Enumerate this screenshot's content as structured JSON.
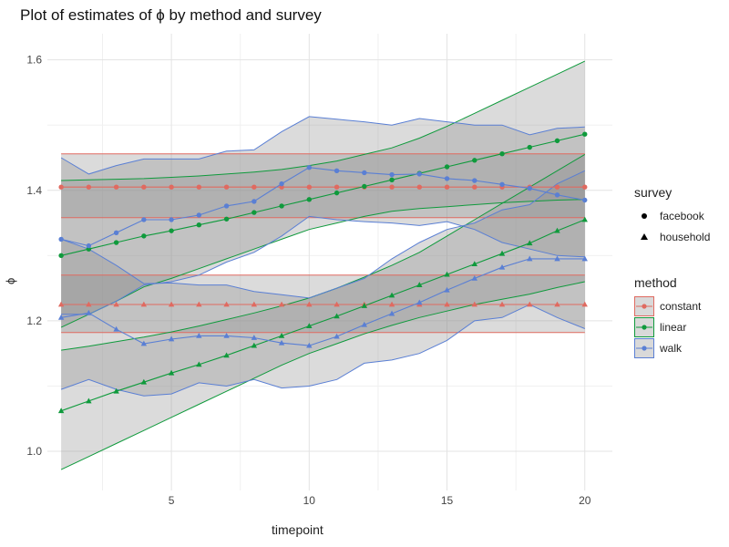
{
  "chart_data": {
    "type": "line",
    "title": "Plot of estimates of ϕ by method and survey",
    "xlabel": "timepoint",
    "ylabel": "ϕ",
    "xlim": [
      0.5,
      21
    ],
    "ylim": [
      0.94,
      1.64
    ],
    "xticks": [
      5,
      10,
      15,
      20
    ],
    "yticks": [
      1.0,
      1.2,
      1.4,
      1.6
    ],
    "x": [
      1,
      2,
      3,
      4,
      5,
      6,
      7,
      8,
      9,
      10,
      11,
      12,
      13,
      14,
      15,
      16,
      17,
      18,
      19,
      20
    ],
    "grid": true,
    "colors": {
      "constant": "#e06a60",
      "linear": "#0f9a3c",
      "walk": "#5a7fd4",
      "ribbon": "#8f8f8f"
    },
    "legend_survey": {
      "title": "survey",
      "items": [
        {
          "label": "facebook",
          "shape": "circle"
        },
        {
          "label": "household",
          "shape": "triangle"
        }
      ]
    },
    "legend_method": {
      "title": "method",
      "items": [
        {
          "label": "constant",
          "color": "#e06a60"
        },
        {
          "label": "linear",
          "color": "#0f9a3c"
        },
        {
          "label": "walk",
          "color": "#5a7fd4"
        }
      ]
    },
    "series": [
      {
        "method": "constant",
        "survey": "facebook",
        "shape": "circle",
        "values": [
          1.405,
          1.405,
          1.405,
          1.405,
          1.405,
          1.405,
          1.405,
          1.405,
          1.405,
          1.405,
          1.405,
          1.405,
          1.405,
          1.405,
          1.405,
          1.405,
          1.405,
          1.405,
          1.405,
          1.405
        ],
        "lower": [
          1.358,
          1.358,
          1.358,
          1.358,
          1.358,
          1.358,
          1.358,
          1.358,
          1.358,
          1.358,
          1.358,
          1.358,
          1.358,
          1.358,
          1.358,
          1.358,
          1.358,
          1.358,
          1.358,
          1.358
        ],
        "upper": [
          1.456,
          1.456,
          1.456,
          1.456,
          1.456,
          1.456,
          1.456,
          1.456,
          1.456,
          1.456,
          1.456,
          1.456,
          1.456,
          1.456,
          1.456,
          1.456,
          1.456,
          1.456,
          1.456,
          1.456
        ]
      },
      {
        "method": "constant",
        "survey": "household",
        "shape": "triangle",
        "values": [
          1.225,
          1.225,
          1.225,
          1.225,
          1.225,
          1.225,
          1.225,
          1.225,
          1.225,
          1.225,
          1.225,
          1.225,
          1.225,
          1.225,
          1.225,
          1.225,
          1.225,
          1.225,
          1.225,
          1.225
        ],
        "lower": [
          1.182,
          1.182,
          1.182,
          1.182,
          1.182,
          1.182,
          1.182,
          1.182,
          1.182,
          1.182,
          1.182,
          1.182,
          1.182,
          1.182,
          1.182,
          1.182,
          1.182,
          1.182,
          1.182,
          1.182
        ],
        "upper": [
          1.27,
          1.27,
          1.27,
          1.27,
          1.27,
          1.27,
          1.27,
          1.27,
          1.27,
          1.27,
          1.27,
          1.27,
          1.27,
          1.27,
          1.27,
          1.27,
          1.27,
          1.27,
          1.27,
          1.27
        ]
      },
      {
        "method": "linear",
        "survey": "facebook",
        "shape": "circle",
        "values": [
          1.3,
          1.31,
          1.32,
          1.33,
          1.338,
          1.347,
          1.356,
          1.366,
          1.376,
          1.386,
          1.396,
          1.406,
          1.416,
          1.426,
          1.436,
          1.446,
          1.456,
          1.466,
          1.476,
          1.486
        ],
        "lower": [
          1.19,
          1.21,
          1.23,
          1.252,
          1.265,
          1.28,
          1.295,
          1.31,
          1.325,
          1.34,
          1.35,
          1.36,
          1.368,
          1.372,
          1.375,
          1.378,
          1.381,
          1.383,
          1.385,
          1.386
        ],
        "upper": [
          1.415,
          1.416,
          1.417,
          1.418,
          1.42,
          1.422,
          1.425,
          1.428,
          1.432,
          1.438,
          1.445,
          1.455,
          1.465,
          1.48,
          1.498,
          1.518,
          1.538,
          1.558,
          1.578,
          1.598
        ]
      },
      {
        "method": "linear",
        "survey": "household",
        "shape": "triangle",
        "values": [
          1.062,
          1.077,
          1.092,
          1.106,
          1.12,
          1.133,
          1.147,
          1.162,
          1.177,
          1.192,
          1.207,
          1.223,
          1.239,
          1.255,
          1.271,
          1.287,
          1.303,
          1.319,
          1.338,
          1.355
        ],
        "lower": [
          0.972,
          0.992,
          1.012,
          1.032,
          1.052,
          1.072,
          1.092,
          1.112,
          1.132,
          1.15,
          1.165,
          1.18,
          1.193,
          1.205,
          1.215,
          1.225,
          1.233,
          1.241,
          1.251,
          1.26
        ],
        "upper": [
          1.155,
          1.161,
          1.168,
          1.175,
          1.183,
          1.192,
          1.202,
          1.212,
          1.223,
          1.235,
          1.25,
          1.267,
          1.285,
          1.305,
          1.33,
          1.355,
          1.38,
          1.405,
          1.43,
          1.455
        ]
      },
      {
        "method": "walk",
        "survey": "facebook",
        "shape": "circle",
        "values": [
          1.325,
          1.315,
          1.335,
          1.355,
          1.355,
          1.362,
          1.376,
          1.383,
          1.41,
          1.435,
          1.43,
          1.427,
          1.424,
          1.425,
          1.418,
          1.415,
          1.409,
          1.403,
          1.393,
          1.385
        ],
        "lower": [
          1.21,
          1.21,
          1.23,
          1.255,
          1.26,
          1.27,
          1.29,
          1.305,
          1.33,
          1.36,
          1.355,
          1.352,
          1.35,
          1.346,
          1.352,
          1.34,
          1.32,
          1.31,
          1.3,
          1.298
        ],
        "upper": [
          1.45,
          1.425,
          1.438,
          1.448,
          1.448,
          1.448,
          1.46,
          1.462,
          1.49,
          1.513,
          1.509,
          1.505,
          1.5,
          1.51,
          1.505,
          1.5,
          1.5,
          1.485,
          1.495,
          1.497
        ]
      },
      {
        "method": "walk",
        "survey": "household",
        "shape": "triangle",
        "values": [
          1.205,
          1.212,
          1.187,
          1.165,
          1.172,
          1.177,
          1.177,
          1.174,
          1.166,
          1.162,
          1.176,
          1.194,
          1.211,
          1.228,
          1.247,
          1.265,
          1.282,
          1.295,
          1.295,
          1.295
        ],
        "lower": [
          1.095,
          1.11,
          1.095,
          1.085,
          1.088,
          1.105,
          1.1,
          1.11,
          1.097,
          1.1,
          1.11,
          1.135,
          1.14,
          1.15,
          1.17,
          1.2,
          1.205,
          1.225,
          1.205,
          1.188
        ],
        "upper": [
          1.325,
          1.31,
          1.285,
          1.257,
          1.258,
          1.255,
          1.255,
          1.245,
          1.24,
          1.235,
          1.25,
          1.265,
          1.295,
          1.32,
          1.34,
          1.35,
          1.37,
          1.378,
          1.41,
          1.43
        ]
      }
    ]
  }
}
